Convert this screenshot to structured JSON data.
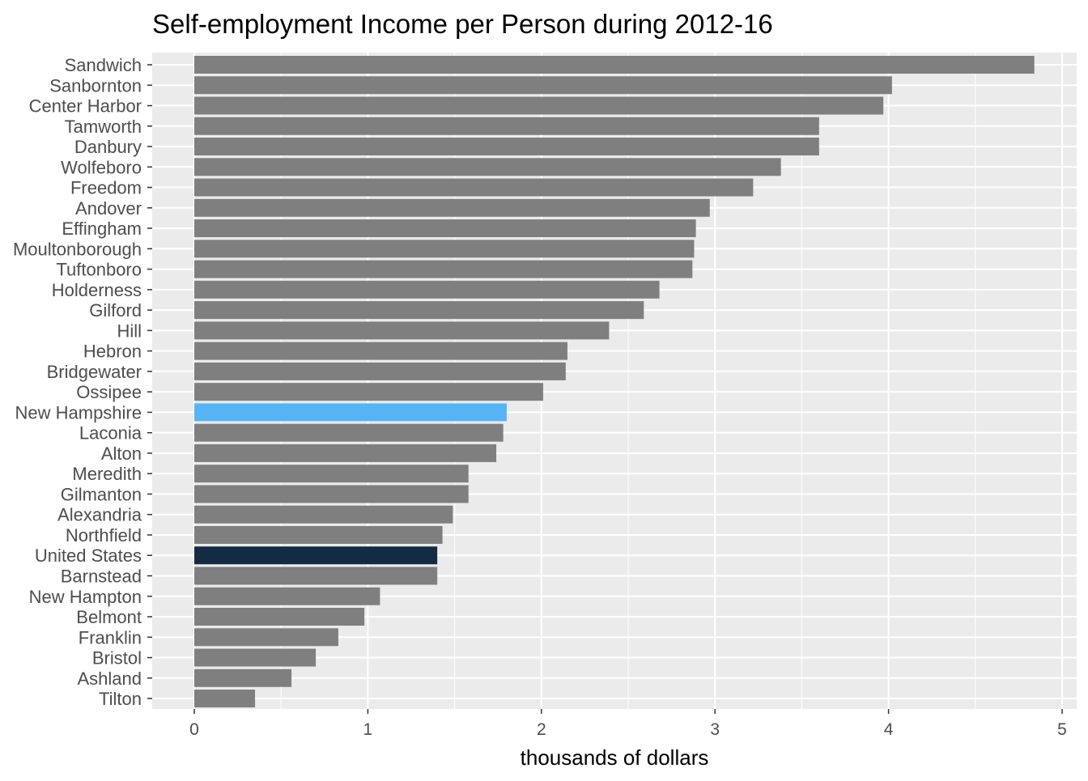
{
  "chart_data": {
    "type": "bar",
    "orientation": "horizontal",
    "title": "Self-employment Income per Person during 2012-16",
    "xlabel": "thousands of dollars",
    "ylabel": "",
    "xlim": [
      0,
      5
    ],
    "xticks": [
      0,
      1,
      2,
      3,
      4,
      5
    ],
    "grid": true,
    "legend": "none",
    "colors": {
      "default": "#7f7f7f",
      "New Hampshire": "#56b4f5",
      "United States": "#132b43",
      "panel": "#ebebeb",
      "grid": "#ffffff"
    },
    "categories": [
      "Sandwich",
      "Sanbornton",
      "Center Harbor",
      "Tamworth",
      "Danbury",
      "Wolfeboro",
      "Freedom",
      "Andover",
      "Effingham",
      "Moultonborough",
      "Tuftonboro",
      "Holderness",
      "Gilford",
      "Hill",
      "Hebron",
      "Bridgewater",
      "Ossipee",
      "New Hampshire",
      "Laconia",
      "Alton",
      "Meredith",
      "Gilmanton",
      "Alexandria",
      "Northfield",
      "United States",
      "Barnstead",
      "New Hampton",
      "Belmont",
      "Franklin",
      "Bristol",
      "Ashland",
      "Tilton"
    ],
    "values": [
      4.84,
      4.02,
      3.97,
      3.6,
      3.6,
      3.38,
      3.22,
      2.97,
      2.89,
      2.88,
      2.87,
      2.68,
      2.59,
      2.39,
      2.15,
      2.14,
      2.01,
      1.8,
      1.78,
      1.74,
      1.58,
      1.58,
      1.49,
      1.43,
      1.4,
      1.4,
      1.07,
      0.98,
      0.83,
      0.7,
      0.56,
      0.35
    ]
  }
}
